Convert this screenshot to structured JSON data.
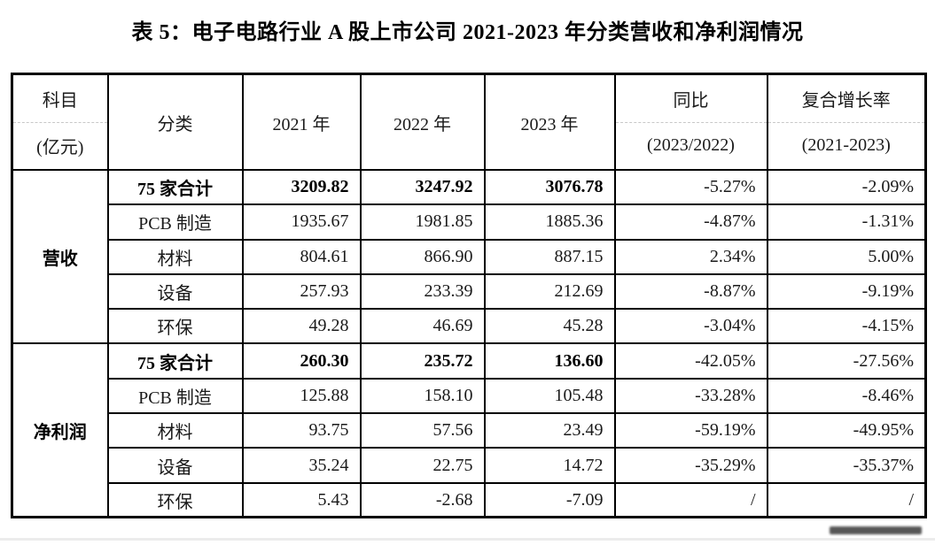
{
  "title": "表 5：电子电路行业 A 股上市公司 2021-2023 年分类营收和净利润情况",
  "table": {
    "header": {
      "subject_line1": "科目",
      "subject_line2": "(亿元)",
      "category": "分类",
      "years": [
        "2021 年",
        "2022 年",
        "2023 年"
      ],
      "yoy_line1": "同比",
      "yoy_line2": "(2023/2022)",
      "cagr_line1": "复合增长率",
      "cagr_line2": "(2021-2023)"
    },
    "groups": [
      {
        "subject": "营收",
        "rows": [
          {
            "category": "75 家合计",
            "bold": true,
            "v2021": "3209.82",
            "v2022": "3247.92",
            "v2023": "3076.78",
            "yoy": "-5.27%",
            "cagr": "-2.09%"
          },
          {
            "category": "PCB 制造",
            "bold": false,
            "v2021": "1935.67",
            "v2022": "1981.85",
            "v2023": "1885.36",
            "yoy": "-4.87%",
            "cagr": "-1.31%"
          },
          {
            "category": "材料",
            "bold": false,
            "v2021": "804.61",
            "v2022": "866.90",
            "v2023": "887.15",
            "yoy": "2.34%",
            "cagr": "5.00%"
          },
          {
            "category": "设备",
            "bold": false,
            "v2021": "257.93",
            "v2022": "233.39",
            "v2023": "212.69",
            "yoy": "-8.87%",
            "cagr": "-9.19%"
          },
          {
            "category": "环保",
            "bold": false,
            "v2021": "49.28",
            "v2022": "46.69",
            "v2023": "45.28",
            "yoy": "-3.04%",
            "cagr": "-4.15%"
          }
        ]
      },
      {
        "subject": "净利润",
        "rows": [
          {
            "category": "75 家合计",
            "bold": true,
            "v2021": "260.30",
            "v2022": "235.72",
            "v2023": "136.60",
            "yoy": "-42.05%",
            "cagr": "-27.56%"
          },
          {
            "category": "PCB 制造",
            "bold": false,
            "v2021": "125.88",
            "v2022": "158.10",
            "v2023": "105.48",
            "yoy": "-33.28%",
            "cagr": "-8.46%"
          },
          {
            "category": "材料",
            "bold": false,
            "v2021": "93.75",
            "v2022": "57.56",
            "v2023": "23.49",
            "yoy": "-59.19%",
            "cagr": "-49.95%"
          },
          {
            "category": "设备",
            "bold": false,
            "v2021": "35.24",
            "v2022": "22.75",
            "v2023": "14.72",
            "yoy": "-35.29%",
            "cagr": "-35.37%"
          },
          {
            "category": "环保",
            "bold": false,
            "v2021": "5.43",
            "v2022": "-2.68",
            "v2023": "-7.09",
            "yoy": "/",
            "cagr": "/"
          }
        ]
      }
    ]
  }
}
